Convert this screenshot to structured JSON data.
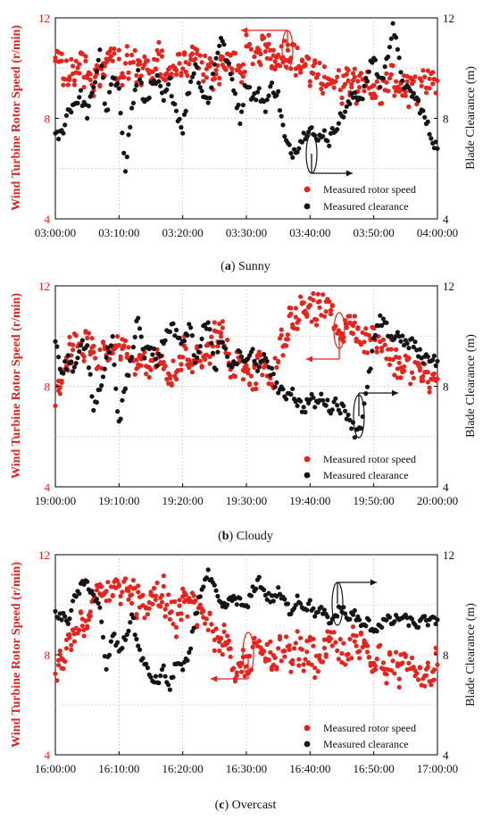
{
  "colors": {
    "rotor_speed": "#e8231c",
    "clearance": "#151515",
    "grid": "#c8c8c8",
    "axis": "#000000",
    "background": "#ffffff"
  },
  "chart_data": [
    {
      "type": "scatter",
      "caption_label": "a",
      "caption_text": "Sunny",
      "xlabels": [
        "03:00:00",
        "03:10:00",
        "03:20:00",
        "03:30:00",
        "03:40:00",
        "03:50:00",
        "04:00:00"
      ],
      "ylabel_left": "Wind Turbine Rotor Speed (r/min)",
      "ylabel_right": "Blade Clearance (m)",
      "ylim_left": [
        4,
        12
      ],
      "ylim_right": [
        4,
        12
      ],
      "yticks": [
        "4",
        "8",
        "12"
      ],
      "grid": true,
      "legend_position": "bottom-right",
      "series": [
        {
          "name": "Measured rotor speed",
          "axis": "left",
          "x": [
            0,
            1,
            2,
            3,
            4,
            5,
            6,
            7,
            8,
            9,
            10,
            11,
            12,
            13,
            14,
            15,
            16,
            17,
            18,
            19,
            20,
            21,
            22,
            23,
            24,
            25,
            26,
            27,
            28,
            29,
            30,
            31,
            32,
            33,
            34,
            35,
            36,
            37,
            38,
            39,
            40,
            41,
            42,
            43,
            44,
            45,
            46,
            47,
            48,
            49,
            50,
            51,
            52,
            53,
            54,
            55,
            56,
            57,
            58,
            59,
            60
          ],
          "y": [
            10.1,
            10.0,
            9.8,
            9.9,
            10.2,
            10.0,
            9.7,
            9.9,
            10.1,
            10.2,
            10.0,
            9.8,
            10.3,
            10.1,
            9.9,
            10.0,
            10.2,
            9.8,
            9.7,
            10.0,
            10.1,
            9.9,
            10.3,
            10.2,
            9.8,
            9.9,
            10.0,
            10.2,
            10.1,
            9.8,
            10.5,
            10.6,
            10.7,
            10.6,
            10.5,
            10.6,
            10.7,
            10.5,
            10.3,
            10.1,
            9.9,
            9.7,
            9.6,
            9.8,
            9.5,
            9.3,
            9.4,
            9.6,
            9.7,
            9.5,
            9.2,
            9.0,
            9.3,
            9.5,
            9.4,
            9.1,
            9.0,
            9.2,
            9.4,
            9.3,
            9.5
          ],
          "spread": 0.6
        },
        {
          "name": "Measured clearance",
          "axis": "right",
          "x": [
            0,
            1,
            2,
            3,
            4,
            5,
            6,
            7,
            8,
            9,
            10,
            11,
            12,
            13,
            14,
            15,
            16,
            17,
            18,
            19,
            20,
            21,
            22,
            23,
            24,
            25,
            26,
            27,
            28,
            29,
            30,
            31,
            32,
            33,
            34,
            35,
            36,
            37,
            38,
            39,
            40,
            41,
            42,
            43,
            44,
            45,
            46,
            47,
            48,
            49,
            50,
            51,
            52,
            53,
            54,
            55,
            56,
            57,
            58,
            59,
            60
          ],
          "y": [
            7.2,
            7.4,
            8.3,
            8.6,
            8.9,
            8.2,
            9.1,
            10.8,
            8.1,
            9.6,
            9.0,
            6.1,
            8.3,
            9.8,
            8.6,
            9.2,
            9.5,
            8.7,
            9.4,
            8.3,
            7.6,
            9.2,
            10.2,
            9.1,
            8.6,
            10.1,
            11.3,
            10.2,
            9.3,
            8.0,
            9.5,
            8.8,
            9.0,
            8.5,
            9.3,
            8.9,
            7.2,
            6.6,
            6.9,
            7.3,
            7.8,
            7.0,
            7.5,
            7.1,
            7.7,
            8.1,
            8.5,
            9.0,
            8.8,
            9.6,
            10.5,
            9.3,
            10.2,
            11.8,
            10.2,
            9.1,
            9.0,
            8.6,
            8.0,
            7.3,
            6.8
          ],
          "spread": 0.25
        }
      ]
    },
    {
      "type": "scatter",
      "caption_label": "b",
      "caption_text": "Cloudy",
      "xlabels": [
        "19:00:00",
        "19:10:00",
        "19:20:00",
        "19:30:00",
        "19:40:00",
        "19:50:00",
        "20:00:00"
      ],
      "ylabel_left": "Wind Turbine Rotor Speed (r/min)",
      "ylabel_right": "Blade Clearance (m)",
      "ylim_left": [
        4,
        12
      ],
      "ylim_right": [
        4,
        12
      ],
      "yticks": [
        "4",
        "8",
        "12"
      ],
      "grid": true,
      "legend_position": "bottom-right",
      "series": [
        {
          "name": "Measured rotor speed",
          "axis": "left",
          "x": [
            0,
            1,
            2,
            3,
            4,
            5,
            6,
            7,
            8,
            9,
            10,
            11,
            12,
            13,
            14,
            15,
            16,
            17,
            18,
            19,
            20,
            21,
            22,
            23,
            24,
            25,
            26,
            27,
            28,
            29,
            30,
            31,
            32,
            33,
            34,
            35,
            36,
            37,
            38,
            39,
            40,
            41,
            42,
            43,
            44,
            45,
            46,
            47,
            48,
            49,
            50,
            51,
            52,
            53,
            54,
            55,
            56,
            57,
            58,
            59,
            60
          ],
          "y": [
            7.6,
            8.6,
            9.2,
            9.6,
            9.4,
            9.8,
            9.3,
            9.0,
            9.6,
            9.2,
            9.7,
            9.4,
            9.0,
            8.8,
            9.2,
            8.6,
            8.9,
            9.1,
            8.4,
            8.7,
            9.3,
            8.8,
            9.2,
            8.9,
            9.4,
            9.8,
            10.1,
            9.4,
            8.8,
            9.1,
            8.6,
            8.3,
            8.9,
            8.5,
            8.1,
            9.3,
            10.1,
            10.6,
            11.0,
            11.4,
            11.1,
            10.8,
            11.3,
            10.9,
            10.6,
            10.2,
            10.8,
            10.3,
            10.0,
            9.8,
            10.1,
            9.6,
            9.3,
            9.0,
            8.7,
            8.9,
            8.4,
            8.7,
            8.2,
            8.5,
            8.3
          ],
          "spread": 0.5
        },
        {
          "name": "Measured clearance",
          "axis": "right",
          "x": [
            0,
            1,
            2,
            3,
            4,
            5,
            6,
            7,
            8,
            9,
            10,
            11,
            12,
            13,
            14,
            15,
            16,
            17,
            18,
            19,
            20,
            21,
            22,
            23,
            24,
            25,
            26,
            27,
            28,
            29,
            30,
            31,
            32,
            33,
            34,
            35,
            36,
            37,
            38,
            39,
            40,
            41,
            42,
            43,
            44,
            45,
            46,
            47,
            48,
            49,
            50,
            51,
            52,
            53,
            54,
            55,
            56,
            57,
            58,
            59,
            60
          ],
          "y": [
            9.9,
            8.4,
            9.1,
            8.7,
            9.8,
            9.4,
            7.1,
            7.9,
            9.2,
            9.8,
            6.4,
            8.0,
            9.2,
            10.9,
            9.3,
            9.6,
            9.0,
            9.8,
            10.4,
            10.2,
            9.6,
            10.5,
            9.1,
            10.0,
            10.7,
            8.6,
            9.8,
            9.1,
            8.8,
            9.3,
            8.9,
            9.4,
            8.6,
            9.2,
            8.5,
            7.9,
            7.6,
            7.9,
            7.4,
            7.1,
            7.5,
            7.3,
            7.6,
            7.1,
            7.4,
            7.1,
            6.9,
            6.2,
            6.5,
            7.9,
            9.8,
            10.6,
            10.3,
            9.9,
            10.1,
            9.6,
            9.8,
            9.3,
            9.1,
            9.2,
            9.0
          ],
          "spread": 0.25
        }
      ]
    },
    {
      "type": "scatter",
      "caption_label": "c",
      "caption_text": "Overcast",
      "xlabels": [
        "16:00:00",
        "16:10:00",
        "16:20:00",
        "16:30:00",
        "16:40:00",
        "16:50:00",
        "17:00:00"
      ],
      "ylabel_left": "Wind Turbine Rotor Speed (r/min)",
      "ylabel_right": "Blade Clearance (m)",
      "ylim_left": [
        4,
        12
      ],
      "ylim_right": [
        4,
        12
      ],
      "yticks": [
        "4",
        "8",
        "12"
      ],
      "grid": true,
      "legend_position": "bottom-right",
      "series": [
        {
          "name": "Measured rotor speed",
          "axis": "left",
          "x": [
            0,
            1,
            2,
            3,
            4,
            5,
            6,
            7,
            8,
            9,
            10,
            11,
            12,
            13,
            14,
            15,
            16,
            17,
            18,
            19,
            20,
            21,
            22,
            23,
            24,
            25,
            26,
            27,
            28,
            29,
            30,
            31,
            32,
            33,
            34,
            35,
            36,
            37,
            38,
            39,
            40,
            41,
            42,
            43,
            44,
            45,
            46,
            47,
            48,
            49,
            50,
            51,
            52,
            53,
            54,
            55,
            56,
            57,
            58,
            59,
            60
          ],
          "y": [
            7.3,
            7.6,
            8.4,
            9.0,
            9.3,
            9.6,
            9.9,
            10.3,
            10.4,
            10.6,
            10.7,
            10.7,
            10.3,
            10.1,
            10.0,
            10.3,
            10.5,
            10.2,
            9.9,
            9.6,
            9.9,
            10.1,
            9.8,
            9.5,
            9.3,
            9.0,
            8.6,
            8.9,
            7.5,
            7.3,
            7.7,
            8.0,
            8.4,
            8.2,
            7.9,
            8.1,
            8.3,
            7.8,
            8.4,
            8.0,
            8.2,
            7.7,
            8.1,
            8.3,
            8.5,
            8.0,
            8.2,
            8.6,
            8.4,
            7.9,
            7.8,
            8.1,
            7.6,
            7.8,
            7.4,
            7.7,
            7.2,
            7.5,
            7.0,
            7.3,
            7.6
          ],
          "spread": 0.55
        },
        {
          "name": "Measured clearance",
          "axis": "right",
          "x": [
            0,
            1,
            2,
            3,
            4,
            5,
            6,
            7,
            8,
            9,
            10,
            11,
            12,
            13,
            14,
            15,
            16,
            17,
            18,
            19,
            20,
            21,
            22,
            23,
            24,
            25,
            26,
            27,
            28,
            29,
            30,
            31,
            32,
            33,
            34,
            35,
            36,
            37,
            38,
            39,
            40,
            41,
            42,
            43,
            44,
            45,
            46,
            47,
            48,
            49,
            50,
            51,
            52,
            53,
            54,
            55,
            56,
            57,
            58,
            59,
            60
          ],
          "y": [
            9.6,
            9.5,
            9.4,
            10.2,
            10.7,
            10.9,
            10.4,
            9.8,
            7.4,
            8.8,
            8.2,
            8.6,
            9.6,
            8.3,
            7.6,
            7.1,
            6.9,
            7.4,
            6.6,
            7.8,
            7.4,
            7.9,
            9.6,
            10.7,
            11.2,
            10.6,
            9.9,
            10.0,
            10.3,
            10.1,
            9.8,
            10.6,
            11.0,
            10.4,
            10.2,
            10.5,
            10.1,
            9.7,
            10.3,
            9.9,
            10.0,
            9.6,
            9.8,
            9.2,
            9.6,
            9.9,
            9.4,
            9.7,
            9.1,
            9.3,
            9.0,
            9.2,
            9.4,
            9.3,
            9.5,
            9.4,
            9.3,
            9.2,
            9.4,
            9.3,
            9.4
          ],
          "spread": 0.2
        }
      ]
    }
  ]
}
